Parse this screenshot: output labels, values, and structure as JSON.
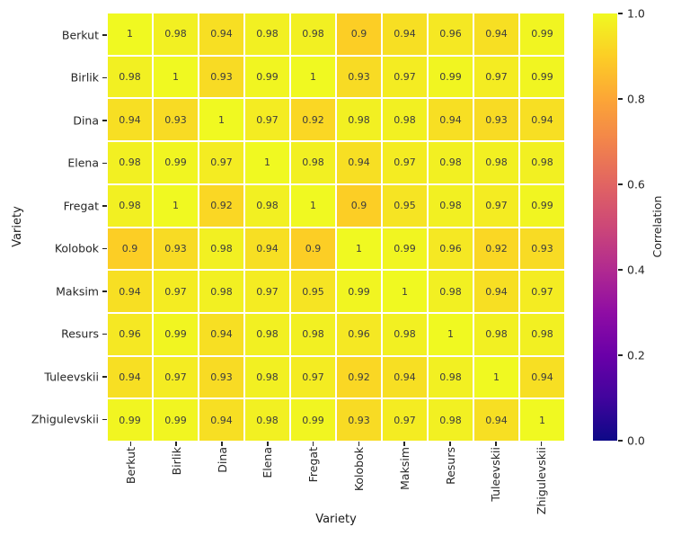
{
  "chart_data": {
    "type": "heatmap",
    "title": "",
    "xlabel": "Variety",
    "ylabel": "Variety",
    "categories": [
      "Berkut",
      "Birlik",
      "Dina",
      "Elena",
      "Fregat",
      "Kolobok",
      "Maksim",
      "Resurs",
      "Tuleevskii",
      "Zhigulevskii"
    ],
    "matrix": [
      [
        1,
        0.98,
        0.94,
        0.98,
        0.98,
        0.9,
        0.94,
        0.96,
        0.94,
        0.99
      ],
      [
        0.98,
        1,
        0.93,
        0.99,
        1,
        0.93,
        0.97,
        0.99,
        0.97,
        0.99
      ],
      [
        0.94,
        0.93,
        1,
        0.97,
        0.92,
        0.98,
        0.98,
        0.94,
        0.93,
        0.94
      ],
      [
        0.98,
        0.99,
        0.97,
        1,
        0.98,
        0.94,
        0.97,
        0.98,
        0.98,
        0.98
      ],
      [
        0.98,
        1,
        0.92,
        0.98,
        1,
        0.9,
        0.95,
        0.98,
        0.97,
        0.99
      ],
      [
        0.9,
        0.93,
        0.98,
        0.94,
        0.9,
        1,
        0.99,
        0.96,
        0.92,
        0.93
      ],
      [
        0.94,
        0.97,
        0.98,
        0.97,
        0.95,
        0.99,
        1,
        0.98,
        0.94,
        0.97
      ],
      [
        0.96,
        0.99,
        0.94,
        0.98,
        0.98,
        0.96,
        0.98,
        1,
        0.98,
        0.98
      ],
      [
        0.94,
        0.97,
        0.93,
        0.98,
        0.97,
        0.92,
        0.94,
        0.98,
        1,
        0.94
      ],
      [
        0.99,
        0.99,
        0.94,
        0.98,
        0.99,
        0.93,
        0.97,
        0.98,
        0.94,
        1
      ]
    ],
    "value_range": [
      0,
      1
    ],
    "grid": false,
    "colorbar": {
      "label": "Correlation",
      "tick_labels": [
        "1.0",
        "0.8",
        "0.6",
        "0.4",
        "0.2",
        "0.0"
      ],
      "tick_values": [
        1.0,
        0.8,
        0.6,
        0.4,
        0.2,
        0.0
      ],
      "position": "right"
    },
    "colormap_name": "plasma",
    "colormap_stops": [
      "#0d0887",
      "#41049d",
      "#6a00a8",
      "#8f0da4",
      "#b12a90",
      "#cc4778",
      "#e16462",
      "#f2844b",
      "#fca636",
      "#fcce25",
      "#f0f921"
    ],
    "colors": {
      "background": "#ffffff",
      "cell_text": "#3d3d3d",
      "tick_text": "#262626",
      "axis_label_text": "#1a1a1a",
      "gridline": "#ffffff"
    }
  }
}
